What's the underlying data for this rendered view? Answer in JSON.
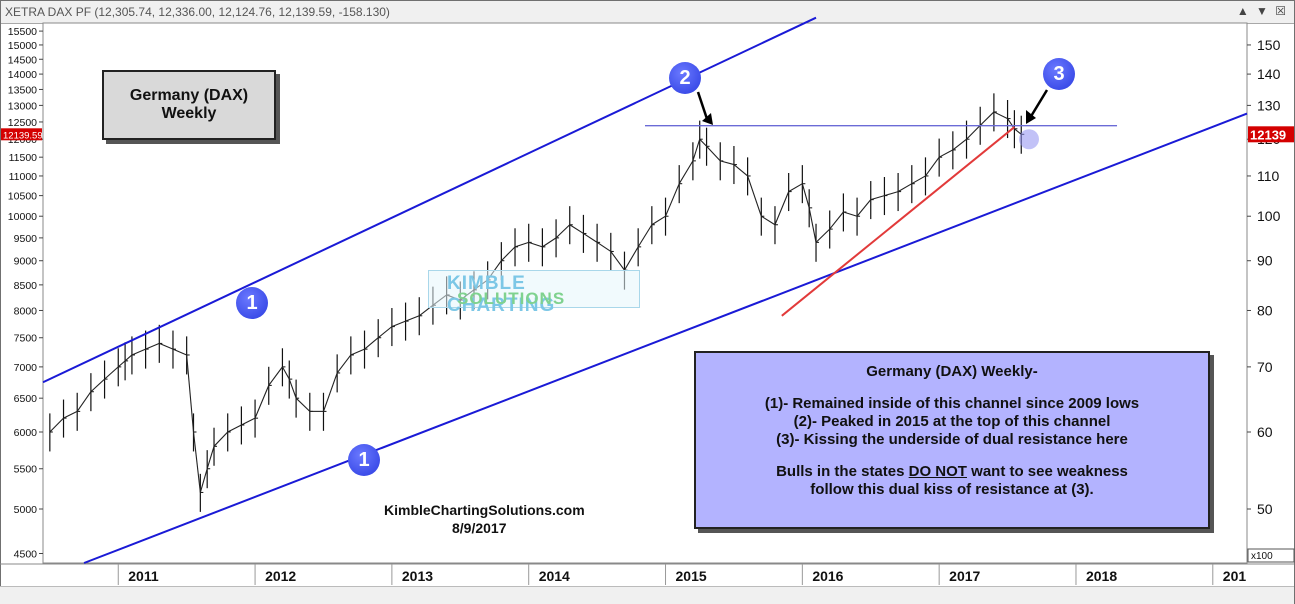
{
  "window": {
    "title": "XETRA DAX PF (12,305.74, 12,336.00, 12,124.76, 12,139.59, -158.130)",
    "controls": "▲ ▼ ☒"
  },
  "left_axis": {
    "ticks": [
      "15500",
      "15000",
      "14500",
      "14000",
      "13500",
      "13000",
      "12500",
      "12000",
      "11500",
      "11000",
      "10500",
      "10000",
      "9500",
      "9000",
      "8500",
      "8000",
      "7500",
      "7000",
      "6500",
      "6000",
      "5500",
      "5000",
      "4500"
    ],
    "ticks_values": [
      15500,
      15000,
      14500,
      14000,
      13500,
      13000,
      12500,
      12000,
      11500,
      11000,
      10500,
      10000,
      9500,
      9000,
      8500,
      8000,
      7500,
      7000,
      6500,
      6000,
      5500,
      5000,
      4500
    ],
    "current_label": "12139.59",
    "current_color": "#d40000"
  },
  "right_axis": {
    "ticks": [
      "150",
      "140",
      "130",
      "120",
      "110",
      "100",
      "90",
      "80",
      "70",
      "60",
      "50"
    ],
    "ticks_values": [
      150,
      140,
      130,
      120,
      110,
      100,
      90,
      80,
      70,
      60,
      50
    ],
    "current_label": "12139",
    "multiplier": "x100"
  },
  "x_axis": {
    "labels": [
      "2011",
      "2012",
      "2013",
      "2014",
      "2015",
      "2016",
      "2017",
      "2018",
      "201"
    ],
    "label_dates": [
      2011.0,
      2012.0,
      2013.0,
      2014.0,
      2015.0,
      2016.0,
      2017.0,
      2018.0,
      2019.0
    ]
  },
  "chart_data": {
    "type": "line",
    "title": "Germany (DAX) Weekly",
    "y_scale": "log",
    "ylim": [
      4400,
      15800
    ],
    "xlim": [
      2010.45,
      2019.25
    ],
    "series": [
      {
        "style": "ohlc-bars",
        "x": [
          2010.5,
          2010.6,
          2010.7,
          2010.8,
          2010.9,
          2011.0,
          2011.05,
          2011.1,
          2011.2,
          2011.3,
          2011.4,
          2011.5,
          2011.55,
          2011.6,
          2011.65,
          2011.7,
          2011.8,
          2011.9,
          2012.0,
          2012.1,
          2012.2,
          2012.25,
          2012.3,
          2012.4,
          2012.5,
          2012.6,
          2012.7,
          2012.8,
          2012.9,
          2013.0,
          2013.1,
          2013.2,
          2013.3,
          2013.4,
          2013.5,
          2013.6,
          2013.7,
          2013.8,
          2013.9,
          2014.0,
          2014.1,
          2014.2,
          2014.3,
          2014.4,
          2014.5,
          2014.6,
          2014.7,
          2014.8,
          2014.9,
          2015.0,
          2015.1,
          2015.2,
          2015.25,
          2015.3,
          2015.4,
          2015.5,
          2015.6,
          2015.7,
          2015.8,
          2015.9,
          2016.0,
          2016.05,
          2016.1,
          2016.2,
          2016.3,
          2016.4,
          2016.5,
          2016.6,
          2016.7,
          2016.8,
          2016.9,
          2017.0,
          2017.1,
          2017.2,
          2017.3,
          2017.4,
          2017.5,
          2017.55,
          2017.6
        ],
        "values": [
          6000,
          6200,
          6300,
          6600,
          6800,
          7000,
          7100,
          7200,
          7300,
          7400,
          7300,
          7200,
          6000,
          5200,
          5500,
          5800,
          6000,
          6100,
          6200,
          6700,
          7000,
          6800,
          6500,
          6300,
          6300,
          6900,
          7200,
          7300,
          7500,
          7700,
          7800,
          7900,
          8100,
          8300,
          8200,
          8400,
          8600,
          9000,
          9300,
          9400,
          9300,
          9500,
          9800,
          9600,
          9400,
          9200,
          8800,
          9300,
          9800,
          10000,
          10800,
          11400,
          12000,
          11800,
          11400,
          11300,
          11000,
          10000,
          9800,
          10600,
          10800,
          10200,
          9400,
          9700,
          10100,
          10000,
          10400,
          10500,
          10600,
          10800,
          11000,
          11500,
          11700,
          12000,
          12400,
          12800,
          12600,
          12300,
          12140
        ]
      }
    ],
    "lines": [
      {
        "name": "upper-channel",
        "color": "#1a1ad6",
        "from": [
          2010.45,
          6750
        ],
        "to": [
          2016.1,
          16000
        ]
      },
      {
        "name": "lower-channel",
        "color": "#1a1ad6",
        "from": [
          2010.75,
          4400
        ],
        "to": [
          2019.25,
          12750
        ]
      },
      {
        "name": "horizontal-resistance",
        "color": "#6b6bd6",
        "from": [
          2014.85,
          12390
        ],
        "to": [
          2018.3,
          12390
        ]
      },
      {
        "name": "rising-support",
        "color": "#e23a3a",
        "from": [
          2015.85,
          7900
        ],
        "to": [
          2017.55,
          12350
        ]
      }
    ]
  },
  "annotations": {
    "box1_line1": "Germany (DAX)",
    "box1_line2": "Weekly",
    "box2_title": "Germany (DAX) Weekly-",
    "box2_line1": "(1)- Remained inside of this channel since 2009 lows",
    "box2_line2": "(2)- Peaked in 2015 at the top of this channel",
    "box2_line3": "(3)- Kissing the underside of dual resistance here",
    "box2_line4a": "Bulls in the states ",
    "box2_line4b": "DO NOT",
    "box2_line4c": " want to see weakness",
    "box2_line5": "follow this dual kiss of resistance at (3).",
    "site": "KimbleChartingSolutions.com",
    "date": "8/9/2017",
    "marker_1a": "1",
    "marker_1b": "1",
    "marker_2": "2",
    "marker_3": "3",
    "watermark_1": "KIMBLE CHARTING",
    "watermark_2": "SOLUTIONS"
  }
}
